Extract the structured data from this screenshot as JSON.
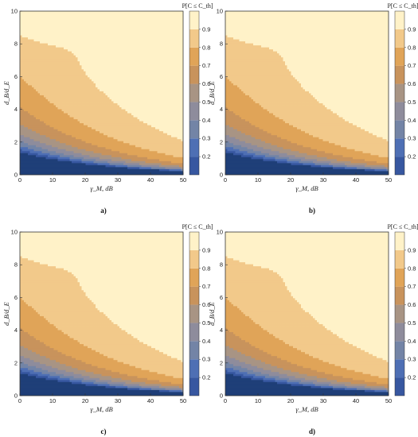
{
  "chart_data": [
    {
      "type": "contour",
      "panel_label": "a)",
      "xlabel": "γ_M, dB",
      "ylabel": "d_B/d_E",
      "xlim": [
        0,
        50
      ],
      "ylim": [
        0,
        10
      ],
      "x_ticks": [
        0,
        10,
        20,
        30,
        40,
        50
      ],
      "y_ticks": [
        0,
        2,
        4,
        6,
        8,
        10
      ],
      "colorbar_title": "P[C ≤ C_th]",
      "colorbar_ticks": [
        0.2,
        0.3,
        0.4,
        0.5,
        0.6,
        0.7,
        0.8,
        0.9
      ],
      "contour_levels": [
        0.1,
        0.2,
        0.3,
        0.4,
        0.5,
        0.6,
        0.7,
        0.8,
        0.9,
        1.0
      ],
      "level_colors": [
        "#1f3f78",
        "#3757a0",
        "#4e6fb4",
        "#7384a6",
        "#8e8c9c",
        "#a89484",
        "#c8935c",
        "#e0a458",
        "#f2c98a",
        "#fff2c8"
      ],
      "min_location": {
        "x": 17.5,
        "y": 10
      },
      "boundary_start_y_at_x0": [
        10.0,
        10.0,
        8.7,
        3.8,
        2.2,
        1.5,
        1.1,
        0.8,
        0.5
      ]
    },
    {
      "type": "contour",
      "panel_label": "b)",
      "xlabel": "γ_M, dB",
      "ylabel": "d_B/d_E",
      "xlim": [
        0,
        50
      ],
      "ylim": [
        0,
        10
      ],
      "x_ticks": [
        0,
        10,
        20,
        30,
        40,
        50
      ],
      "y_ticks": [
        0,
        2,
        4,
        6,
        8,
        10
      ],
      "colorbar_title": "P[C ≤ C_th]",
      "colorbar_ticks": [
        0.2,
        0.3,
        0.4,
        0.5,
        0.6,
        0.7,
        0.8,
        0.9
      ],
      "contour_levels": [
        0.1,
        0.2,
        0.3,
        0.4,
        0.5,
        0.6,
        0.7,
        0.8,
        0.9,
        1.0
      ],
      "level_colors": [
        "#1f3f78",
        "#3757a0",
        "#4e6fb4",
        "#7384a6",
        "#8e8c9c",
        "#a89484",
        "#c8935c",
        "#e0a458",
        "#f2c98a",
        "#fff2c8"
      ],
      "min_location": {
        "x": 17.5,
        "y": 10
      },
      "boundary_start_y_at_x0": [
        10.0,
        10.0,
        8.7,
        3.8,
        2.2,
        1.5,
        1.1,
        0.8,
        0.5
      ]
    },
    {
      "type": "contour",
      "panel_label": "c)",
      "xlabel": "γ_M, dB",
      "ylabel": "d_B/d_E",
      "xlim": [
        0,
        50
      ],
      "ylim": [
        0,
        10
      ],
      "x_ticks": [
        0,
        10,
        20,
        30,
        40,
        50
      ],
      "y_ticks": [
        0,
        2,
        4,
        6,
        8,
        10
      ],
      "colorbar_title": "P[C ≤ C_th]",
      "colorbar_ticks": [
        0.2,
        0.3,
        0.4,
        0.5,
        0.6,
        0.7,
        0.8,
        0.9
      ],
      "contour_levels": [
        0.1,
        0.2,
        0.3,
        0.4,
        0.5,
        0.6,
        0.7,
        0.8,
        0.9,
        1.0
      ],
      "level_colors": [
        "#1f3f78",
        "#3757a0",
        "#4e6fb4",
        "#7384a6",
        "#8e8c9c",
        "#a89484",
        "#c8935c",
        "#e0a458",
        "#f2c98a",
        "#fff2c8"
      ],
      "min_location": {
        "x": 17.5,
        "y": 10
      },
      "boundary_start_y_at_x0": [
        10.0,
        10.0,
        8.7,
        3.8,
        2.2,
        1.5,
        1.1,
        0.8,
        0.5
      ]
    },
    {
      "type": "contour",
      "panel_label": "d)",
      "xlabel": "γ_M, dB",
      "ylabel": "d_B/d_E",
      "xlim": [
        0,
        50
      ],
      "ylim": [
        0,
        10
      ],
      "x_ticks": [
        0,
        10,
        20,
        30,
        40,
        50
      ],
      "y_ticks": [
        0,
        2,
        4,
        6,
        8,
        10
      ],
      "colorbar_title": "P[C ≤ C_th]",
      "colorbar_ticks": [
        0.2,
        0.3,
        0.4,
        0.5,
        0.6,
        0.7,
        0.8,
        0.9
      ],
      "contour_levels": [
        0.1,
        0.2,
        0.3,
        0.4,
        0.5,
        0.6,
        0.7,
        0.8,
        0.9,
        1.0
      ],
      "level_colors": [
        "#1f3f78",
        "#3757a0",
        "#4e6fb4",
        "#7384a6",
        "#8e8c9c",
        "#a89484",
        "#c8935c",
        "#e0a458",
        "#f2c98a",
        "#fff2c8"
      ],
      "min_location": {
        "x": 17.5,
        "y": 10
      },
      "boundary_start_y_at_x0": [
        10.0,
        10.0,
        8.7,
        3.8,
        2.2,
        1.5,
        1.1,
        0.8,
        0.5
      ]
    }
  ]
}
